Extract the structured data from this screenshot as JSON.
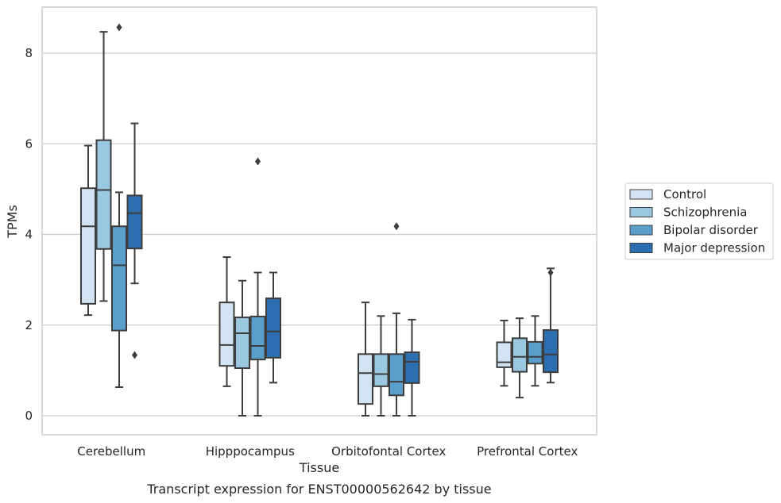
{
  "chart_data": {
    "type": "boxplot",
    "title": "",
    "caption": "Transcript expression for ENST00000562642 by tissue",
    "xlabel": "Tissue",
    "ylabel": "TPMs",
    "ylim": [
      -0.4,
      9.0
    ],
    "yticks": [
      0,
      2,
      4,
      6,
      8
    ],
    "grid": "horizontal",
    "legend_position": "right",
    "categories": [
      "Cerebellum",
      "Hipppocampus",
      "Orbitofontal Cortex",
      "Prefrontal Cortex"
    ],
    "series": [
      {
        "name": "Control",
        "color": "#d2e3f3",
        "boxes": [
          {
            "whislo": 2.22,
            "q1": 2.47,
            "med": 4.18,
            "q3": 5.02,
            "whishi": 5.96,
            "fliers": []
          },
          {
            "whislo": 0.65,
            "q1": 1.1,
            "med": 1.56,
            "q3": 2.5,
            "whishi": 3.5,
            "fliers": []
          },
          {
            "whislo": 0.0,
            "q1": 0.26,
            "med": 0.94,
            "q3": 1.36,
            "whishi": 2.5,
            "fliers": []
          },
          {
            "whislo": 0.66,
            "q1": 1.07,
            "med": 1.18,
            "q3": 1.62,
            "whishi": 2.1,
            "fliers": []
          }
        ]
      },
      {
        "name": "Schizophrenia",
        "color": "#9ac8e0",
        "boxes": [
          {
            "whislo": 2.53,
            "q1": 3.68,
            "med": 4.98,
            "q3": 6.08,
            "whishi": 8.47,
            "fliers": []
          },
          {
            "whislo": 0.0,
            "q1": 1.05,
            "med": 1.82,
            "q3": 2.17,
            "whishi": 2.98,
            "fliers": []
          },
          {
            "whislo": 0.0,
            "q1": 0.65,
            "med": 0.92,
            "q3": 1.36,
            "whishi": 2.2,
            "fliers": []
          },
          {
            "whislo": 0.4,
            "q1": 0.97,
            "med": 1.3,
            "q3": 1.71,
            "whishi": 2.15,
            "fliers": []
          }
        ]
      },
      {
        "name": "Bipolar disorder",
        "color": "#5a9ecc",
        "boxes": [
          {
            "whislo": 0.63,
            "q1": 1.88,
            "med": 3.32,
            "q3": 4.18,
            "whishi": 4.93,
            "fliers": [
              8.57
            ]
          },
          {
            "whislo": 0.0,
            "q1": 1.24,
            "med": 1.54,
            "q3": 2.19,
            "whishi": 3.16,
            "fliers": [
              5.61
            ]
          },
          {
            "whislo": 0.0,
            "q1": 0.45,
            "med": 0.75,
            "q3": 1.36,
            "whishi": 2.26,
            "fliers": [
              4.18
            ]
          },
          {
            "whislo": 0.66,
            "q1": 1.15,
            "med": 1.3,
            "q3": 1.63,
            "whishi": 2.2,
            "fliers": []
          }
        ]
      },
      {
        "name": "Major depression",
        "color": "#2b6fb0",
        "boxes": [
          {
            "whislo": 2.92,
            "q1": 3.69,
            "med": 4.47,
            "q3": 4.86,
            "whishi": 6.45,
            "fliers": [
              1.34
            ]
          },
          {
            "whislo": 0.73,
            "q1": 1.28,
            "med": 1.86,
            "q3": 2.59,
            "whishi": 3.16,
            "fliers": []
          },
          {
            "whislo": 0.0,
            "q1": 0.72,
            "med": 1.19,
            "q3": 1.4,
            "whishi": 2.12,
            "fliers": []
          },
          {
            "whislo": 0.73,
            "q1": 0.96,
            "med": 1.35,
            "q3": 1.89,
            "whishi": 3.25,
            "fliers": [
              3.16
            ]
          }
        ]
      }
    ]
  }
}
